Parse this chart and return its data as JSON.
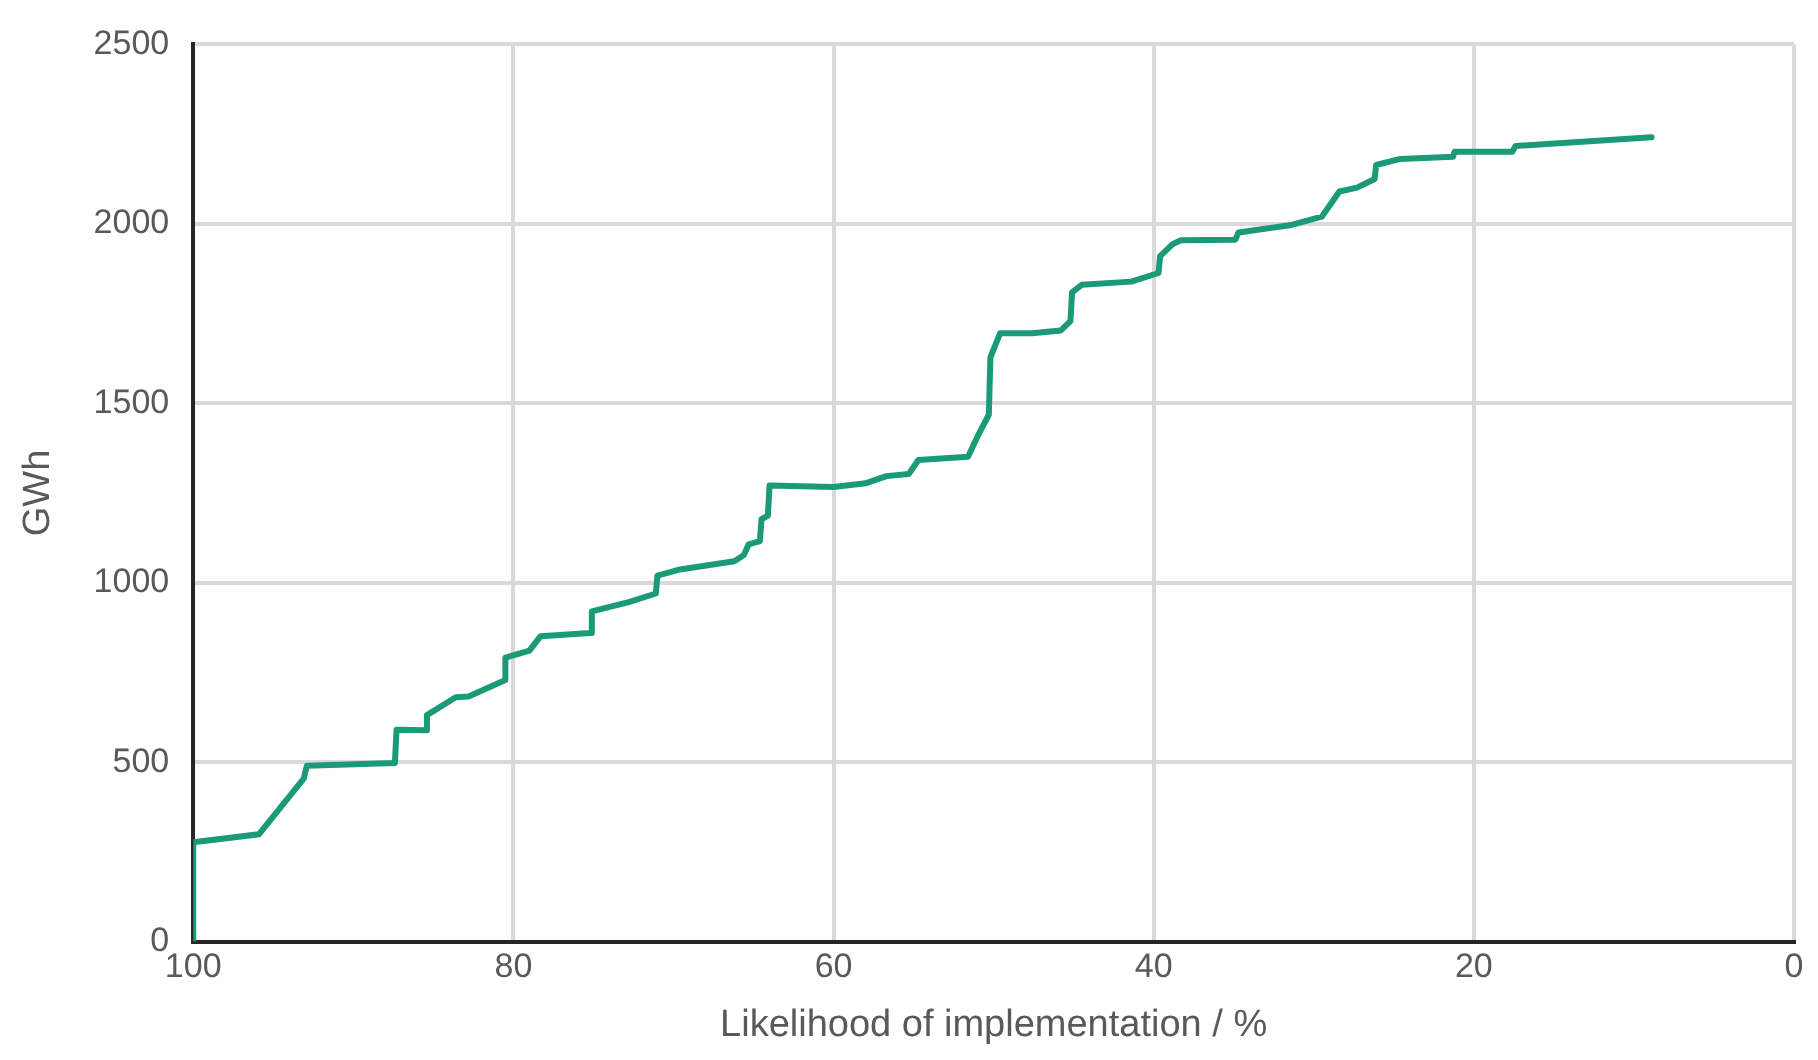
{
  "chart_data": {
    "type": "line",
    "xlabel": "Likelihood of implementation / %",
    "ylabel": "GWh",
    "xlim": [
      100,
      0
    ],
    "xticks": [
      100,
      80,
      60,
      40,
      20,
      0
    ],
    "ylim": [
      0,
      2500
    ],
    "yticks": [
      0,
      500,
      1000,
      1500,
      2000,
      2500
    ],
    "grid": true,
    "legend": false,
    "marker": "none",
    "line_style": "solid",
    "series": [
      {
        "color": "#1a9a76",
        "x": [
          100,
          100,
          95.9,
          93.1,
          92.9,
          87.4,
          87.3,
          85.4,
          85.4,
          83.6,
          82.8,
          80.5,
          80.5,
          79.0,
          78.3,
          75.2,
          75.1,
          72.8,
          71.1,
          71.0,
          69.7,
          66.2,
          65.6,
          65.3,
          64.6,
          64.5,
          64.1,
          64.0,
          60.0,
          58.0,
          56.7,
          55.3,
          54.7,
          51.6,
          50.9,
          50.3,
          50.2,
          49.6,
          47.6,
          45.8,
          45.2,
          45.1,
          44.5,
          41.4,
          39.7,
          39.6,
          38.8,
          38.3,
          34.9,
          34.7,
          31.5,
          29.5,
          28.4,
          27.3,
          26.2,
          26.1,
          24.6,
          21.3,
          21.2,
          17.6,
          17.4,
          8.9
        ],
        "values": [
          0,
          277,
          299,
          454,
          490,
          498,
          590,
          589,
          631,
          681,
          683,
          729,
          791,
          811,
          851,
          860,
          920,
          946,
          970,
          1020,
          1036,
          1060,
          1077,
          1107,
          1116,
          1177,
          1187,
          1271,
          1267,
          1277,
          1297,
          1303,
          1342,
          1351,
          1417,
          1468,
          1628,
          1695,
          1695,
          1703,
          1729,
          1809,
          1830,
          1839,
          1863,
          1910,
          1944,
          1954,
          1956,
          1976,
          1996,
          2020,
          2090,
          2101,
          2125,
          2164,
          2181,
          2187,
          2201,
          2201,
          2217,
          2241
        ]
      }
    ]
  }
}
